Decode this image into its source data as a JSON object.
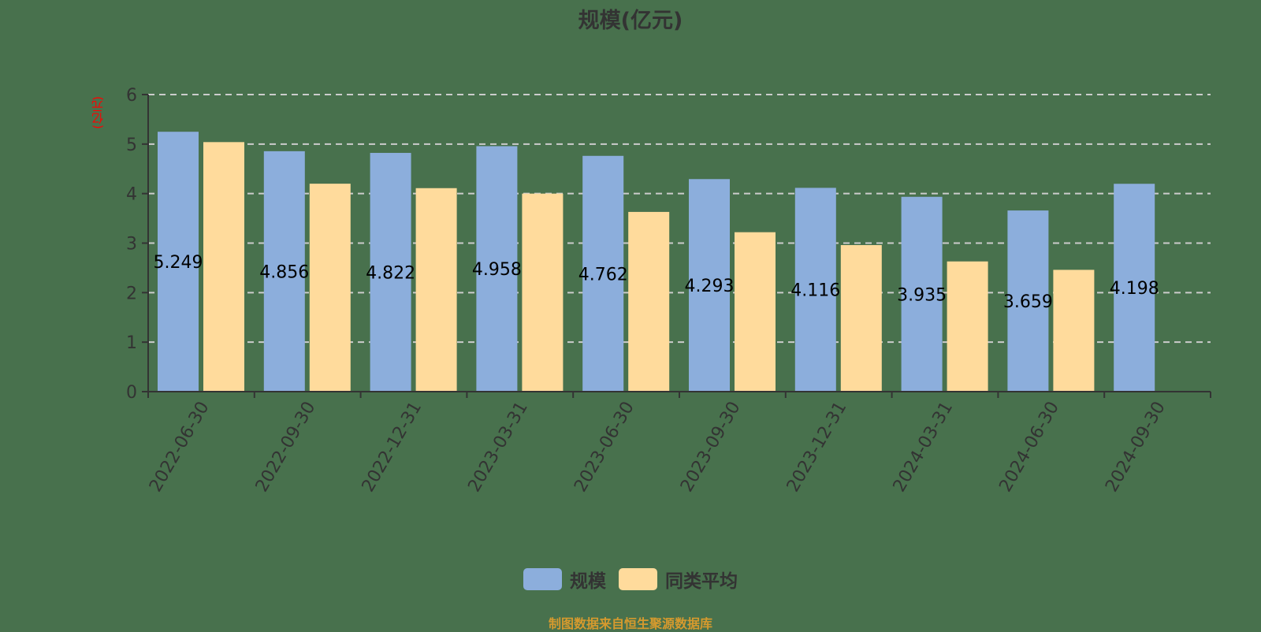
{
  "title": "规模(亿元)",
  "y_unit_label": "(亿元)",
  "legend": [
    {
      "label": "规模",
      "color": "#8caedc"
    },
    {
      "label": "同类平均",
      "color": "#ffdb9c"
    }
  ],
  "source": "制图数据来自恒生聚源数据库",
  "colors": {
    "background": "#48714d",
    "axis": "#333333",
    "grid": "#cccccc",
    "unit_label": "#ff0000",
    "source": "#d69a2e"
  },
  "chart_data": {
    "type": "bar",
    "title": "规模(亿元)",
    "xlabel": "",
    "ylabel": "(亿元)",
    "ylim": [
      0,
      6
    ],
    "yticks": [
      0,
      1,
      2,
      3,
      4,
      5,
      6
    ],
    "grid": true,
    "legend_position": "bottom",
    "categories": [
      "2022-06-30",
      "2022-09-30",
      "2022-12-31",
      "2023-03-31",
      "2023-06-30",
      "2023-09-30",
      "2023-12-31",
      "2024-03-31",
      "2024-06-30",
      "2024-09-30"
    ],
    "series": [
      {
        "name": "规模",
        "color": "#8caedc",
        "values": [
          5.249,
          4.856,
          4.822,
          4.958,
          4.762,
          4.293,
          4.116,
          3.935,
          3.659,
          4.198
        ],
        "labels_shown": true
      },
      {
        "name": "同类平均",
        "color": "#ffdb9c",
        "values": [
          5.04,
          4.2,
          4.11,
          4.0,
          3.63,
          3.22,
          2.96,
          2.63,
          2.46,
          null
        ],
        "labels_shown": false
      }
    ]
  }
}
